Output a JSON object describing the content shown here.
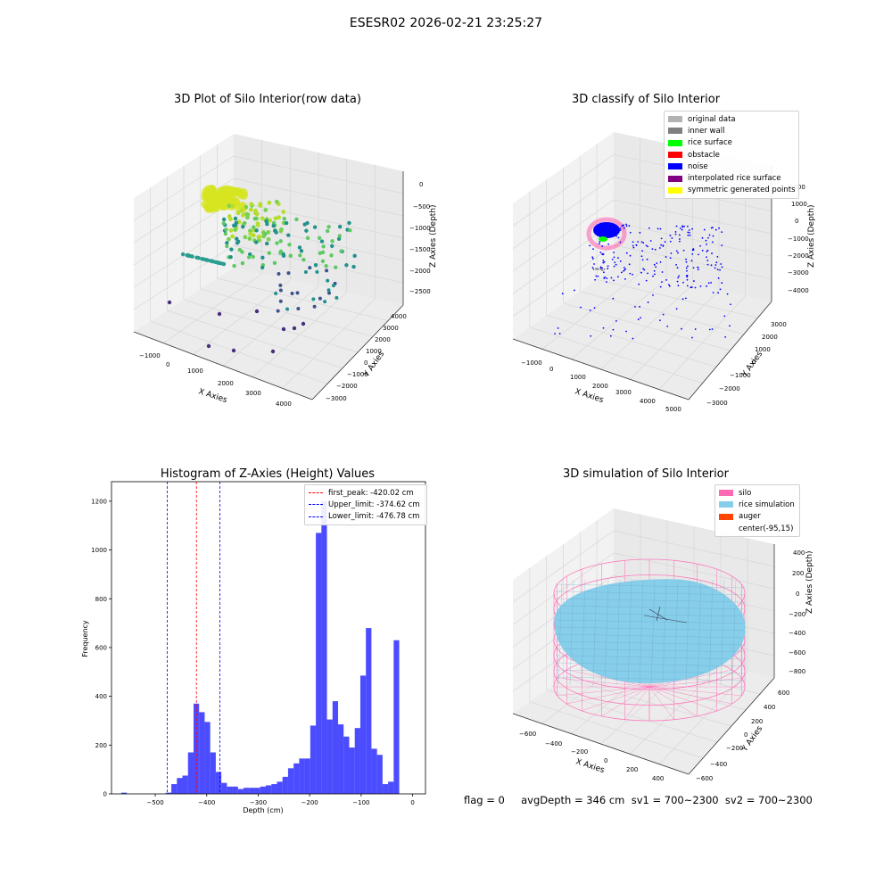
{
  "suptitle": "ESESR02 2026-02-21 23:25:27",
  "plots": {
    "raw": {
      "title": "3D Plot of Silo Interior(row data)",
      "xlabel": "X Axies",
      "ylabel": "Y Axies",
      "zlabel": "Z Axies (Depth)",
      "xticks": [
        "−1000",
        "0",
        "1000",
        "2000",
        "3000",
        "4000"
      ],
      "yticks": [
        "4000",
        "3000",
        "2000",
        "1000",
        "0",
        "−1000",
        "−2000",
        "−3000"
      ],
      "zticks": [
        "0",
        "−500",
        "−1000",
        "−1500",
        "−2000",
        "−2500"
      ]
    },
    "classify": {
      "title": "3D classify of Silo Interior",
      "xlabel": "X Axies",
      "ylabel": "Y Axies",
      "zlabel": "Z Axies (Depth)",
      "xticks": [
        "−1000",
        "0",
        "1000",
        "2000",
        "3000",
        "4000",
        "5000"
      ],
      "yticks": [
        "3000",
        "2000",
        "1000",
        "0",
        "−1000",
        "−2000",
        "−3000"
      ],
      "zticks": [
        "2000",
        "1000",
        "0",
        "−1000",
        "−2000",
        "−3000",
        "−4000"
      ],
      "legend": [
        {
          "label": "original data",
          "color": "#b3b3b3"
        },
        {
          "label": "inner wall",
          "color": "#808080"
        },
        {
          "label": "rice surface",
          "color": "#00ff00"
        },
        {
          "label": "obstacle",
          "color": "#ff0000"
        },
        {
          "label": "noise",
          "color": "#0000ff"
        },
        {
          "label": "interpolated rice surface",
          "color": "#800080"
        },
        {
          "label": "symmetric generated points",
          "color": "#ffff00"
        }
      ]
    },
    "histogram": {
      "title": "Histogram of Z-Axies (Height) Values",
      "xlabel": "Depth (cm)",
      "ylabel": "Frequency",
      "legend": [
        {
          "label": "first_peak: -420.02 cm",
          "color": "#ff0000"
        },
        {
          "label": "Upper_limit: -374.62 cm",
          "color": "#0000ff"
        },
        {
          "label": "Lower_limit: -476.78 cm",
          "color": "#0000ff"
        }
      ]
    },
    "simulation": {
      "title": "3D simulation of Silo Interior",
      "xlabel": "X Axies",
      "ylabel": "Y Axies",
      "zlabel": "Z Axies (Depth)",
      "xticks": [
        "−600",
        "−400",
        "−200",
        "0",
        "200",
        "400"
      ],
      "yticks": [
        "600",
        "400",
        "200",
        "0",
        "−200",
        "−400",
        "−600"
      ],
      "zticks": [
        "400",
        "200",
        "0",
        "−200",
        "−400",
        "−600",
        "−800"
      ],
      "legend": [
        {
          "label": "silo",
          "color": "#ff69b4"
        },
        {
          "label": "rice simulation",
          "color": "#87ceeb"
        },
        {
          "label": "auger",
          "color": "#ff4500"
        },
        {
          "label": "center(-95,15)",
          "color": ""
        }
      ]
    }
  },
  "footer": {
    "text": "flag = 0     avgDepth = 346 cm  sv1 = 700~2300  sv2 = 700~2300"
  },
  "chart_data": [
    {
      "type": "scatter",
      "title": "3D Plot of Silo Interior(row data)",
      "xlabel": "X Axies",
      "ylabel": "Y Axies",
      "zlabel": "Z Axies (Depth)",
      "xlim": [
        -1200,
        4400
      ],
      "ylim": [
        -3500,
        4200
      ],
      "zlim": [
        -2800,
        100
      ],
      "series": [
        {
          "values": []
        }
      ]
    },
    {
      "type": "scatter",
      "title": "3D classify of Silo Interior",
      "xlabel": "X Axies",
      "ylabel": "Y Axies",
      "zlabel": "Z Axies (Depth)",
      "xlim": [
        -1200,
        5200
      ],
      "ylim": [
        -3500,
        3500
      ],
      "zlim": [
        -4500,
        2500
      ],
      "series": [
        {
          "name": "original data",
          "values": []
        },
        {
          "name": "inner wall",
          "values": []
        },
        {
          "name": "rice surface",
          "values": []
        },
        {
          "name": "obstacle",
          "values": []
        },
        {
          "name": "noise",
          "values": []
        },
        {
          "name": "interpolated rice surface",
          "values": []
        },
        {
          "name": "symmetric generated points",
          "values": []
        }
      ]
    },
    {
      "type": "bar",
      "title": "Histogram of Z-Axies (Height) Values",
      "xlabel": "Depth (cm)",
      "ylabel": "Frequency",
      "xlim": [
        -585,
        25
      ],
      "ylim": [
        0,
        1280
      ],
      "xticks": [
        -500,
        -400,
        -300,
        -200,
        -100,
        0
      ],
      "yticks": [
        0,
        200,
        400,
        600,
        800,
        1000,
        1200
      ],
      "bin_start": -566,
      "bin_width": 10.8,
      "values": [
        5,
        0,
        0,
        0,
        0,
        0,
        0,
        0,
        5,
        40,
        65,
        75,
        170,
        370,
        335,
        295,
        170,
        90,
        45,
        30,
        30,
        20,
        25,
        25,
        25,
        30,
        35,
        40,
        50,
        70,
        105,
        125,
        145,
        145,
        280,
        1070,
        1200,
        305,
        380,
        285,
        235,
        190,
        270,
        485,
        680,
        185,
        160,
        40,
        50,
        630
      ],
      "vlines": [
        {
          "name": "first_peak: -420.02 cm",
          "x": -420.02,
          "color": "#ff0000"
        },
        {
          "name": "Upper_limit: -374.62 cm",
          "x": -374.62,
          "color": "#0000ff"
        },
        {
          "name": "Lower_limit: -476.78 cm",
          "x": -476.78,
          "color": "#0000ff"
        }
      ]
    },
    {
      "type": "area",
      "title": "3D simulation of Silo Interior",
      "xlabel": "X Axies",
      "ylabel": "Y Axies",
      "zlabel": "Z Axies (Depth)",
      "xlim": [
        -700,
        500
      ],
      "ylim": [
        -650,
        650
      ],
      "zlim": [
        -900,
        450
      ],
      "series": [
        {
          "name": "silo",
          "values": []
        },
        {
          "name": "rice simulation",
          "values": []
        },
        {
          "name": "auger",
          "values": []
        }
      ]
    }
  ]
}
